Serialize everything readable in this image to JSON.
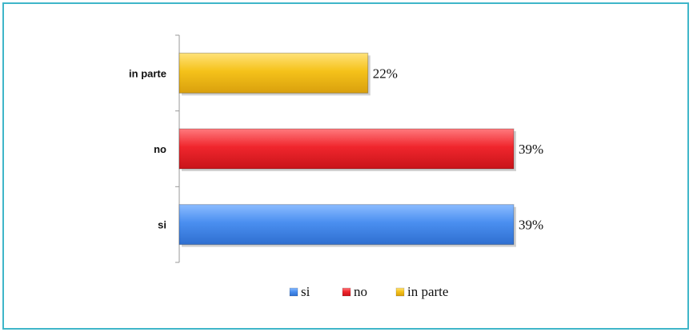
{
  "chart_data": {
    "type": "bar",
    "orientation": "horizontal",
    "categories": [
      "si",
      "no",
      "in parte"
    ],
    "values": [
      39,
      39,
      22
    ],
    "value_labels": [
      "39%",
      "39%",
      "22%"
    ],
    "colors": [
      "#4a8ff0",
      "#f0262d",
      "#f5c21a"
    ],
    "xlim": [
      0,
      39
    ],
    "grid": false,
    "legend": {
      "placement": "bottom",
      "entries": [
        "si",
        "no",
        "in parte"
      ]
    }
  }
}
